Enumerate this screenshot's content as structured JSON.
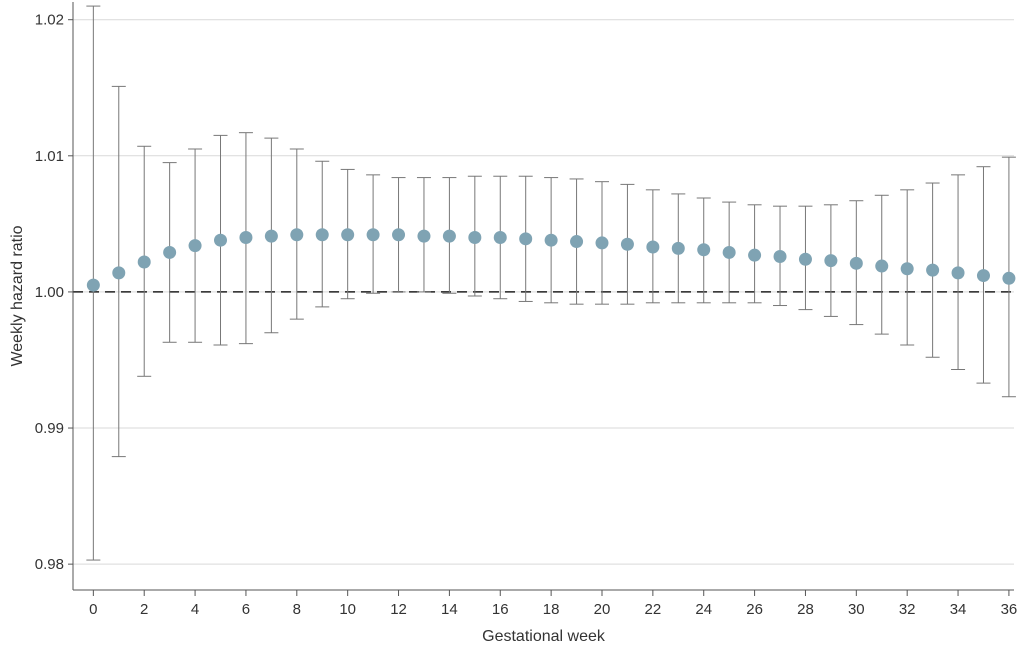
{
  "chart_data": {
    "type": "scatter",
    "xlabel": "Gestational week",
    "ylabel": "Weekly hazard ratio",
    "xlim": [
      -0.8,
      36.2
    ],
    "ylim": [
      0.9781,
      1.0213
    ],
    "x_ticks": [
      0,
      2,
      4,
      6,
      8,
      10,
      12,
      14,
      16,
      18,
      20,
      22,
      24,
      26,
      28,
      30,
      32,
      34,
      36
    ],
    "x_tick_labels": [
      "0",
      "2",
      "4",
      "6",
      "8",
      "10",
      "12",
      "14",
      "16",
      "18",
      "20",
      "22",
      "24",
      "26",
      "28",
      "30",
      "32",
      "34",
      "36"
    ],
    "y_ticks": [
      0.98,
      0.99,
      1.0,
      1.01,
      1.02
    ],
    "y_tick_labels": [
      "0.98",
      "0.99",
      "1.00",
      "1.01",
      "1.02"
    ],
    "grid": "horizontal",
    "reference_line": 1.0,
    "marker_color": "#7fa3b3",
    "series": [
      {
        "x": [
          0,
          1,
          2,
          3,
          4,
          5,
          6,
          7,
          8,
          9,
          10,
          11,
          12,
          13,
          14,
          15,
          16,
          17,
          18,
          19,
          20,
          21,
          22,
          23,
          24,
          25,
          26,
          27,
          28,
          29,
          30,
          31,
          32,
          33,
          34,
          35,
          36
        ],
        "y": [
          1.0005,
          1.0014,
          1.0022,
          1.0029,
          1.0034,
          1.0038,
          1.004,
          1.0041,
          1.0042,
          1.0042,
          1.0042,
          1.0042,
          1.0042,
          1.0041,
          1.0041,
          1.004,
          1.004,
          1.0039,
          1.0038,
          1.0037,
          1.0036,
          1.0035,
          1.0033,
          1.0032,
          1.0031,
          1.0029,
          1.0027,
          1.0026,
          1.0024,
          1.0023,
          1.0021,
          1.0019,
          1.0017,
          1.0016,
          1.0014,
          1.0012,
          1.001
        ],
        "lower": [
          0.9803,
          0.9879,
          0.9938,
          0.9963,
          0.9963,
          0.9961,
          0.9962,
          0.997,
          0.998,
          0.9989,
          0.9995,
          0.9999,
          1.0,
          1.0,
          0.9999,
          0.9997,
          0.9995,
          0.9993,
          0.9992,
          0.9991,
          0.9991,
          0.9991,
          0.9992,
          0.9992,
          0.9992,
          0.9992,
          0.9992,
          0.999,
          0.9987,
          0.9982,
          0.9976,
          0.9969,
          0.9961,
          0.9952,
          0.9943,
          0.9933,
          0.9923
        ],
        "upper": [
          1.021,
          1.0151,
          1.0107,
          1.0095,
          1.0105,
          1.0115,
          1.0117,
          1.0113,
          1.0105,
          1.0096,
          1.009,
          1.0086,
          1.0084,
          1.0084,
          1.0084,
          1.0085,
          1.0085,
          1.0085,
          1.0084,
          1.0083,
          1.0081,
          1.0079,
          1.0075,
          1.0072,
          1.0069,
          1.0066,
          1.0064,
          1.0063,
          1.0063,
          1.0064,
          1.0067,
          1.0071,
          1.0075,
          1.008,
          1.0086,
          1.0092,
          1.0099
        ]
      }
    ]
  }
}
